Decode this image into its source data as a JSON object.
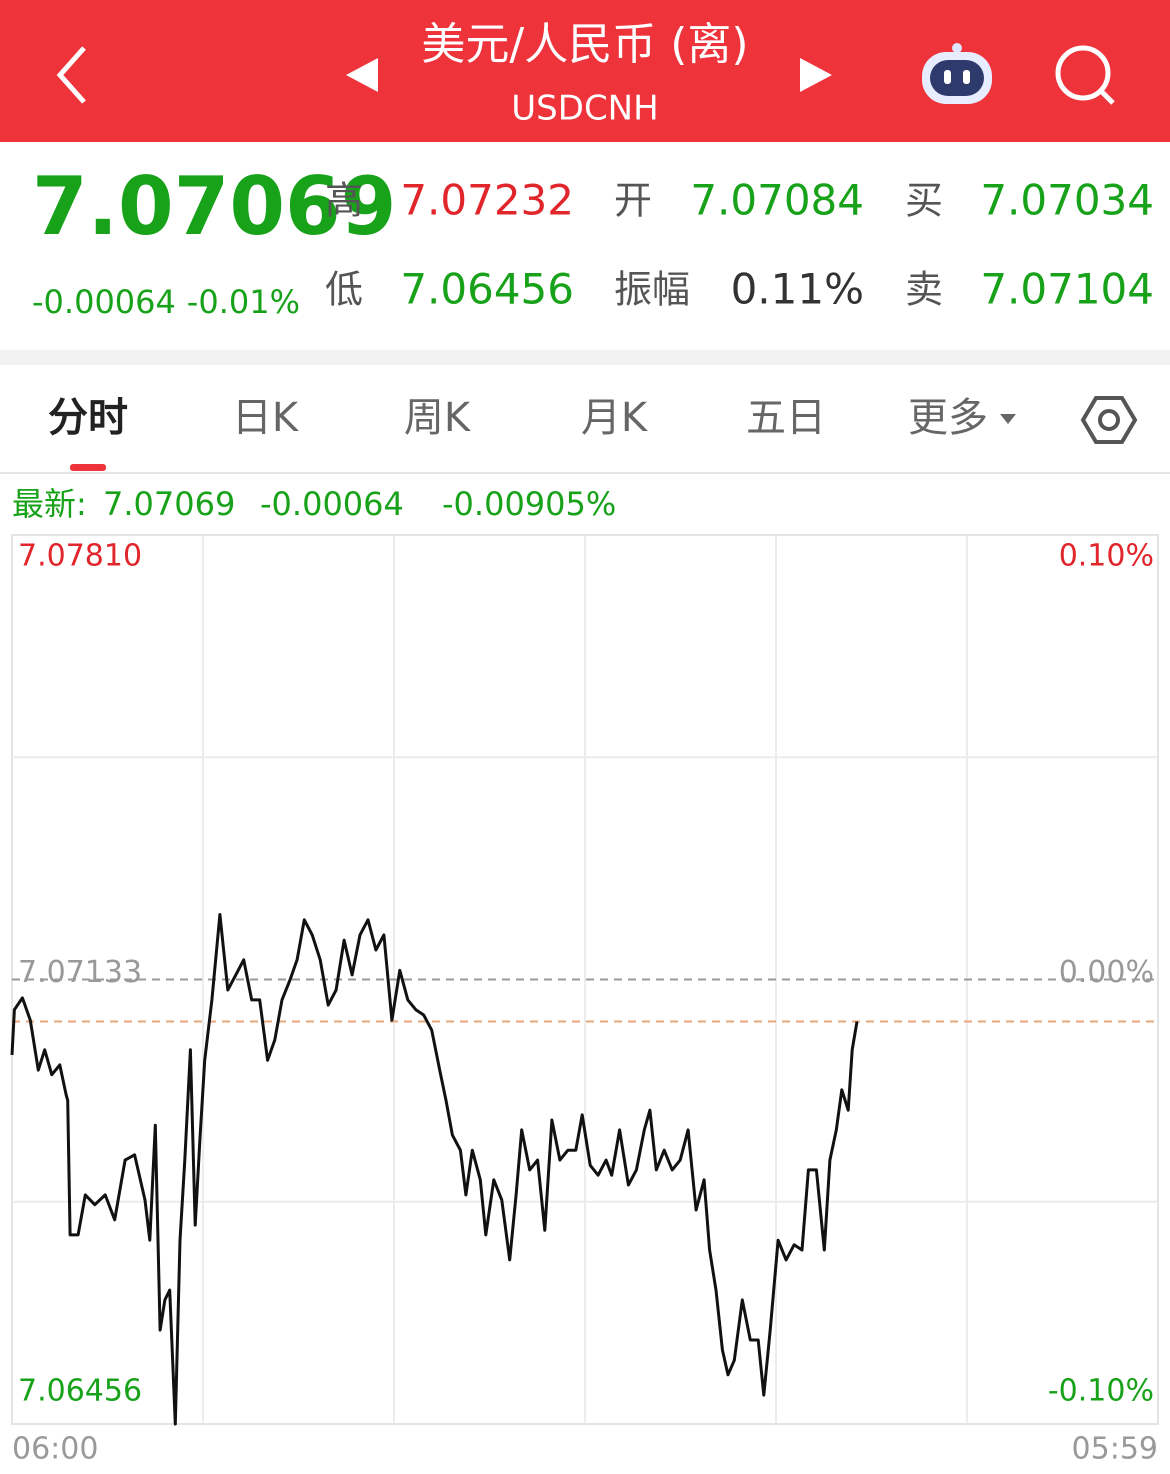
{
  "header": {
    "title": "美元/人民币 (离)",
    "subtitle": "USDCNH"
  },
  "quote": {
    "price": "7.07069",
    "change": "-0.00064",
    "change_pct": "-0.01%",
    "fields": [
      {
        "label": "高",
        "value": "7.07232",
        "color": "#e0252b"
      },
      {
        "label": "开",
        "value": "7.07084",
        "color": "#17a21a"
      },
      {
        "label": "买",
        "value": "7.07034",
        "color": "#17a21a"
      },
      {
        "label": "低",
        "value": "7.06456",
        "color": "#17a21a"
      },
      {
        "label": "振幅",
        "value": "0.11%",
        "color": "#333333"
      },
      {
        "label": "卖",
        "value": "7.07104",
        "color": "#17a21a"
      }
    ]
  },
  "tabs": [
    "分时",
    "日K",
    "周K",
    "月K",
    "五日",
    "更多"
  ],
  "latest": {
    "label": "最新:",
    "price": "7.07069",
    "change": "-0.00064",
    "change_pct": "-0.00905%"
  },
  "chart_data": {
    "type": "line",
    "color": "#111111",
    "x": [
      0,
      3,
      13,
      23,
      33,
      41,
      50,
      60,
      68,
      70,
      73,
      83,
      92,
      104,
      117,
      129,
      142,
      154,
      167,
      173,
      180,
      186,
      192,
      198,
      205,
      211,
      217,
      224,
      230,
      236,
      242,
      251,
      261,
      271,
      281,
      291,
      301,
      311,
      321,
      330,
      339,
      349,
      358,
      367,
      377,
      387,
      397,
      407,
      417,
      427,
      437,
      447,
      457,
      467,
      477,
      487,
      497,
      507,
      517,
      527,
      537,
      545,
      553,
      563,
      570,
      578,
      588,
      595,
      605,
      615,
      625,
      633,
      640,
      650,
      660,
      669,
      678,
      688,
      698,
      708,
      716,
      726,
      736,
      746,
      753,
      763,
      774,
      784,
      794,
      801,
      809,
      819,
      829,
      839,
      849,
      859,
      869,
      876,
      884,
      892,
      899,
      907,
      917,
      927,
      937,
      944,
      952,
      962,
      972,
      982,
      992,
      1000,
      1010,
      1020,
      1027,
      1035,
      1042,
      1050,
      1055,
      1061
    ],
    "values": [
      7.07018,
      7.07087,
      7.07105,
      7.07071,
      7.06995,
      7.07026,
      7.06988,
      7.07003,
      7.06957,
      7.06949,
      7.06744,
      7.06744,
      7.06805,
      7.0679,
      7.06805,
      7.06767,
      7.06858,
      7.06866,
      7.06797,
      7.06736,
      7.06911,
      7.06599,
      7.06645,
      7.0666,
      7.06456,
      7.06736,
      7.06858,
      7.07026,
      7.06759,
      7.06889,
      7.0701,
      7.07102,
      7.07232,
      7.07117,
      7.0714,
      7.07163,
      7.07102,
      7.07102,
      7.0701,
      7.07041,
      7.07102,
      7.07132,
      7.07163,
      7.07224,
      7.07201,
      7.07163,
      7.07094,
      7.07117,
      7.07193,
      7.0714,
      7.07201,
      7.07224,
      7.07178,
      7.07201,
      7.07071,
      7.07147,
      7.07102,
      7.07087,
      7.07079,
      7.07056,
      7.06995,
      7.06949,
      7.06896,
      7.06873,
      7.06805,
      7.06873,
      7.06828,
      7.06744,
      7.06828,
      7.06797,
      7.06706,
      7.06805,
      7.06904,
      7.06843,
      7.06858,
      7.06751,
      7.06919,
      7.06858,
      7.06873,
      7.06873,
      7.06927,
      7.0685,
      7.06835,
      7.06858,
      7.06835,
      7.06904,
      7.0682,
      7.06843,
      7.06904,
      7.06934,
      7.06843,
      7.06873,
      7.06843,
      7.06858,
      7.06904,
      7.06782,
      7.06828,
      7.06721,
      7.0666,
      7.06569,
      7.06531,
      7.06553,
      7.06645,
      7.06584,
      7.06584,
      7.065,
      7.06599,
      7.06736,
      7.06706,
      7.06729,
      7.06721,
      7.06843,
      7.06843,
      7.06721,
      7.06858,
      7.06904,
      7.06965,
      7.06934,
      7.07026,
      7.07069
    ],
    "xlim": [
      0,
      1439
    ],
    "xticks": [
      {
        "value": 0,
        "label": "06:00"
      },
      {
        "value": 1439,
        "label": "05:59"
      }
    ],
    "ylim": [
      7.06456,
      7.0781
    ],
    "yticks": [
      7.06456,
      7.07133,
      {
        "value": 7.0781,
        "label": "7.07810"
      }
    ],
    "y2lim": [
      -0.1,
      0.1
    ],
    "y2ticks": [
      {
        "value": -0.1,
        "label": "-0.10%"
      },
      {
        "value": 0,
        "label": "0.00%"
      },
      {
        "value": 0.1,
        "label": "0.10%"
      }
    ]
  }
}
